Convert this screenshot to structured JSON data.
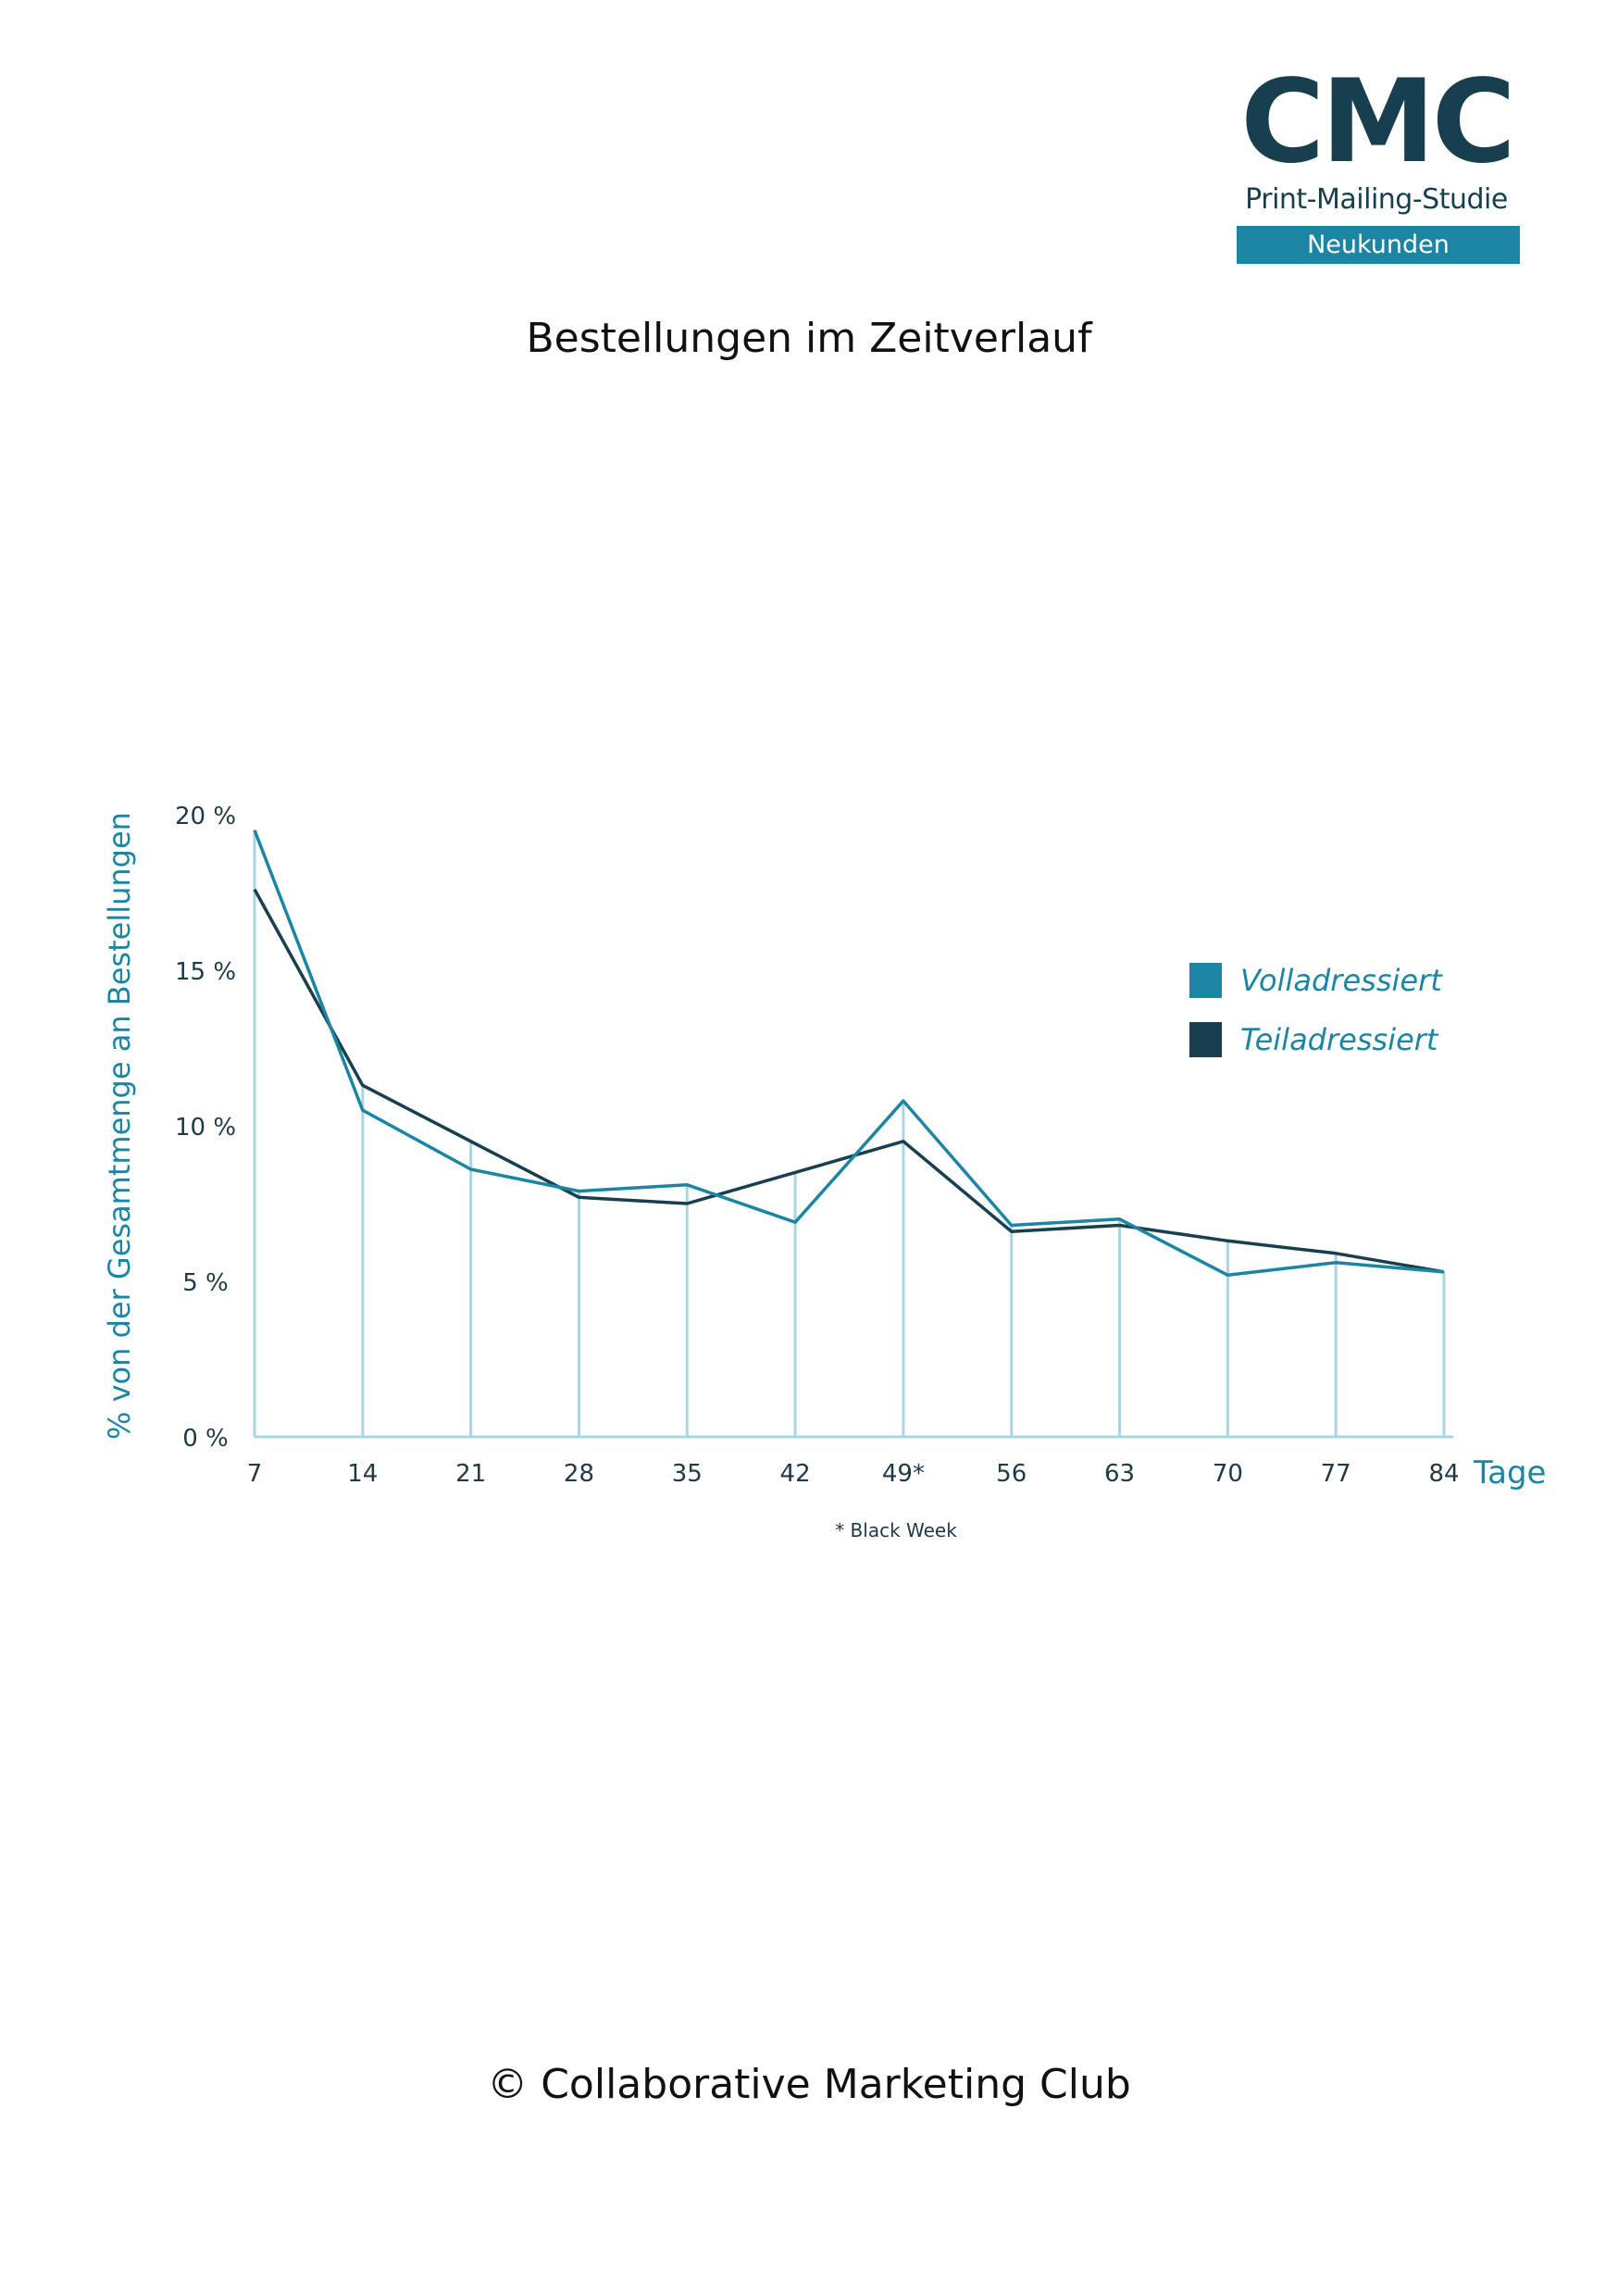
{
  "logo": {
    "text": "CMC",
    "subtitle": "Print-Mailing-Studie",
    "badge": "Neukunden"
  },
  "page_title": "Bestellungen im Zeitverlauf",
  "footer": "© Collaborative Marketing Club",
  "colors": {
    "volladressiert": "#1b85a3",
    "teiladressiert": "#173f4f",
    "gridline": "#a9d6e0",
    "axis_label": "#1b85a3"
  },
  "chart_data": {
    "type": "line",
    "title": "",
    "xlabel": "Tage",
    "ylabel": "% von der Gesamtmenge an Bestellungen",
    "x": [
      "7",
      "14",
      "21",
      "28",
      "35",
      "42",
      "49*",
      "56",
      "63",
      "70",
      "77",
      "84"
    ],
    "y_ticks": [
      "0 %",
      "5 %",
      "10 %",
      "15 %",
      "20 %"
    ],
    "ylim": [
      0,
      20
    ],
    "note": "* Black Week",
    "legend_position": "top-right",
    "series": [
      {
        "name": "Volladressiert",
        "color": "#1b85a3",
        "values": [
          19.5,
          10.5,
          8.6,
          7.9,
          8.1,
          6.9,
          10.8,
          6.8,
          7.0,
          5.2,
          5.6,
          5.3
        ]
      },
      {
        "name": "Teiladressiert",
        "color": "#173f4f",
        "values": [
          17.6,
          11.3,
          9.5,
          7.7,
          7.5,
          8.5,
          9.5,
          6.6,
          6.8,
          6.3,
          5.9,
          5.3
        ]
      }
    ]
  }
}
